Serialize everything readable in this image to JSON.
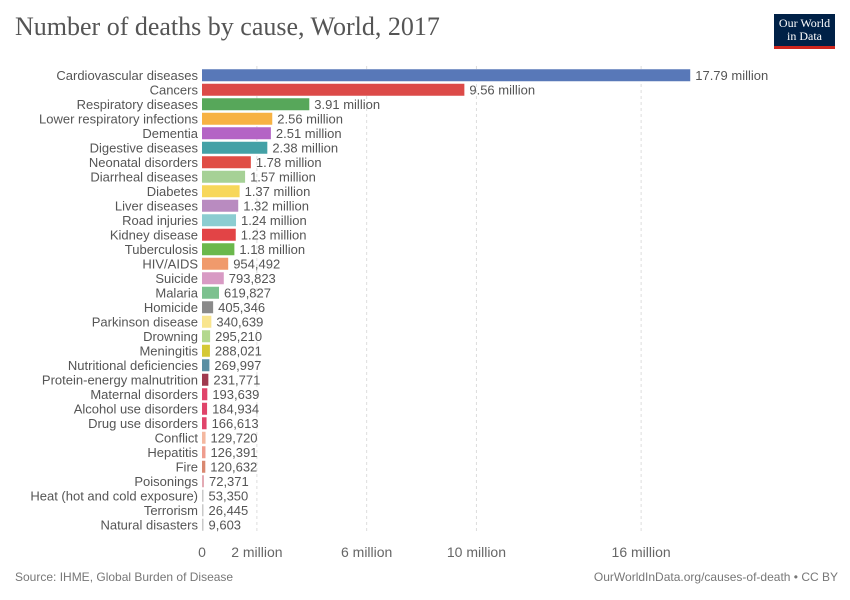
{
  "title": "Number of deaths by cause, World, 2017",
  "logo": {
    "line1": "Our World",
    "line2": "in Data"
  },
  "footer": {
    "source": "Source: IHME, Global Burden of Disease",
    "link": "OurWorldInData.org/causes-of-death • CC BY"
  },
  "chart_data": {
    "type": "bar",
    "orientation": "horizontal",
    "title": "Number of deaths by cause, World, 2017",
    "xlabel": "",
    "ylabel": "",
    "xlim": [
      0,
      18000000
    ],
    "xticks": [
      {
        "value": 0,
        "label": "0"
      },
      {
        "value": 2000000,
        "label": "2 million"
      },
      {
        "value": 6000000,
        "label": "6 million"
      },
      {
        "value": 10000000,
        "label": "10 million"
      },
      {
        "value": 16000000,
        "label": "16 million"
      }
    ],
    "grid": true,
    "legend": "none",
    "bars": [
      {
        "category": "Cardiovascular diseases",
        "value": 17790000,
        "label": "17.79 million",
        "color": "#5878b8"
      },
      {
        "category": "Cancers",
        "value": 9560000,
        "label": "9.56 million",
        "color": "#dc4a48"
      },
      {
        "category": "Respiratory diseases",
        "value": 3910000,
        "label": "3.91 million",
        "color": "#57a75a"
      },
      {
        "category": "Lower respiratory infections",
        "value": 2560000,
        "label": "2.56 million",
        "color": "#f7b243"
      },
      {
        "category": "Dementia",
        "value": 2510000,
        "label": "2.51 million",
        "color": "#b464c5"
      },
      {
        "category": "Digestive diseases",
        "value": 2380000,
        "label": "2.38 million",
        "color": "#44a1a6"
      },
      {
        "category": "Neonatal disorders",
        "value": 1780000,
        "label": "1.78 million",
        "color": "#e04d45"
      },
      {
        "category": "Diarrheal diseases",
        "value": 1570000,
        "label": "1.57 million",
        "color": "#a6d196"
      },
      {
        "category": "Diabetes",
        "value": 1370000,
        "label": "1.37 million",
        "color": "#f7d75a"
      },
      {
        "category": "Liver diseases",
        "value": 1320000,
        "label": "1.32 million",
        "color": "#b98bc0"
      },
      {
        "category": "Road injuries",
        "value": 1240000,
        "label": "1.24 million",
        "color": "#8ccdd1"
      },
      {
        "category": "Kidney disease",
        "value": 1230000,
        "label": "1.23 million",
        "color": "#e24446"
      },
      {
        "category": "Tuberculosis",
        "value": 1180000,
        "label": "1.18 million",
        "color": "#6bb84c"
      },
      {
        "category": "HIV/AIDS",
        "value": 954492,
        "label": "954,492",
        "color": "#f09a6c"
      },
      {
        "category": "Suicide",
        "value": 793823,
        "label": "793,823",
        "color": "#d89ac4"
      },
      {
        "category": "Malaria",
        "value": 619827,
        "label": "619,827",
        "color": "#7cc18f"
      },
      {
        "category": "Homicide",
        "value": 405346,
        "label": "405,346",
        "color": "#8a8a8a"
      },
      {
        "category": "Parkinson disease",
        "value": 340639,
        "label": "340,639",
        "color": "#f9e58e"
      },
      {
        "category": "Drowning",
        "value": 295210,
        "label": "295,210",
        "color": "#b3d88e"
      },
      {
        "category": "Meningitis",
        "value": 288021,
        "label": "288,021",
        "color": "#d5c936"
      },
      {
        "category": "Nutritional deficiencies",
        "value": 269997,
        "label": "269,997",
        "color": "#5a8fa3"
      },
      {
        "category": "Protein-energy malnutrition",
        "value": 231771,
        "label": "231,771",
        "color": "#a03a4f"
      },
      {
        "category": "Maternal disorders",
        "value": 193639,
        "label": "193,639",
        "color": "#e0446a"
      },
      {
        "category": "Alcohol use disorders",
        "value": 184934,
        "label": "184,934",
        "color": "#e0446a"
      },
      {
        "category": "Drug use disorders",
        "value": 166613,
        "label": "166,613",
        "color": "#e0446a"
      },
      {
        "category": "Conflict",
        "value": 129720,
        "label": "129,720",
        "color": "#f4b8a0"
      },
      {
        "category": "Hepatitis",
        "value": 126391,
        "label": "126,391",
        "color": "#ef9d8e"
      },
      {
        "category": "Fire",
        "value": 120632,
        "label": "120,632",
        "color": "#d98870"
      },
      {
        "category": "Poisonings",
        "value": 72371,
        "label": "72,371",
        "color": "#e3aab4"
      },
      {
        "category": "Heat (hot and cold exposure)",
        "value": 53350,
        "label": "53,350",
        "color": "#c9c9c9"
      },
      {
        "category": "Terrorism",
        "value": 26445,
        "label": "26,445",
        "color": "#c9c9c9"
      },
      {
        "category": "Natural disasters",
        "value": 9603,
        "label": "9,603",
        "color": "#c9c9c9"
      }
    ]
  }
}
